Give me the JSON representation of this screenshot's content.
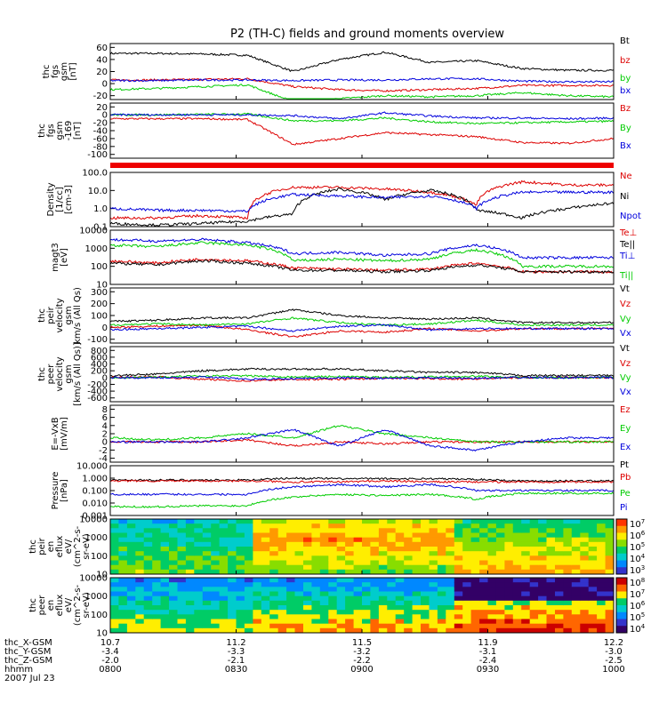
{
  "title": "P2 (TH-C) fields and ground moments overview",
  "colors": {
    "black": "#000000",
    "red": "#dd0000",
    "green": "#00cc00",
    "blue": "#0000dd"
  },
  "chart_data": [
    {
      "type": "line",
      "panel": "fgs",
      "ylabel": [
        "thc",
        "fgs",
        "gsm",
        "[nT]"
      ],
      "yticks": [
        "60",
        "40",
        "20",
        "0",
        "-20"
      ],
      "series": [
        {
          "name": "Bt",
          "color": "black",
          "values": [
            50,
            50,
            49,
            47,
            20,
            40,
            52,
            35,
            38,
            25,
            22,
            22
          ]
        },
        {
          "name": "bz",
          "color": "red",
          "values": [
            6,
            6,
            7,
            8,
            -5,
            -10,
            -12,
            -10,
            -8,
            -3,
            -3,
            -3
          ]
        },
        {
          "name": "by",
          "color": "green",
          "values": [
            -10,
            -8,
            -5,
            -2,
            -30,
            -25,
            -20,
            -22,
            -20,
            -15,
            -20,
            -22
          ]
        },
        {
          "name": "bx",
          "color": "blue",
          "values": [
            5,
            5,
            6,
            6,
            5,
            6,
            6,
            8,
            8,
            4,
            3,
            3
          ]
        }
      ]
    },
    {
      "type": "line",
      "panel": "fgs-169",
      "ylabel": [
        "thc",
        "fgs",
        "gsm",
        "-169",
        "[nT]"
      ],
      "yticks": [
        "20",
        "0",
        "-20",
        "-40",
        "-60",
        "-80",
        "-100"
      ],
      "series": [
        {
          "name": "Bz",
          "color": "red",
          "values": [
            -10,
            -10,
            -10,
            -12,
            -75,
            -60,
            -45,
            -50,
            -55,
            -70,
            -72,
            -60
          ]
        },
        {
          "name": "By",
          "color": "green",
          "values": [
            0,
            0,
            1,
            2,
            -15,
            -15,
            -8,
            -18,
            -22,
            -20,
            -18,
            -16
          ]
        },
        {
          "name": "Bx",
          "color": "blue",
          "values": [
            0,
            0,
            0,
            0,
            -2,
            -10,
            5,
            -3,
            -8,
            -8,
            -10,
            -8
          ]
        }
      ]
    },
    {
      "type": "line",
      "panel": "density",
      "yscale": "log",
      "ylabel": [
        "Density",
        "[1/cc]",
        "[cm-3]"
      ],
      "yticks": [
        "100.0",
        "10.0",
        "1.0",
        "0.1"
      ],
      "series": [
        {
          "name": "Ne",
          "color": "red",
          "values": [
            0.3,
            0.3,
            0.4,
            0.3,
            15,
            15,
            12,
            8,
            1.5,
            30,
            20,
            20
          ]
        },
        {
          "name": "Ni",
          "color": "black",
          "values": [
            0.15,
            0.12,
            0.15,
            0.2,
            0.5,
            12,
            3,
            10,
            0.8,
            0.3,
            1,
            2
          ]
        },
        {
          "name": "Npot",
          "color": "blue",
          "values": [
            1,
            0.8,
            0.8,
            0.7,
            6,
            5,
            4,
            5,
            1,
            8,
            8,
            8
          ]
        }
      ]
    },
    {
      "type": "line",
      "panel": "temperature",
      "yscale": "log",
      "ylabel": [
        "magt3",
        "[eV]"
      ],
      "yticks": [
        "10000",
        "1000",
        "100",
        "10"
      ],
      "legend_extra": [
        "Te⊥",
        "Te||",
        "Ti⊥",
        "Ti||"
      ],
      "series": [
        {
          "name": "Te⊥",
          "color": "red",
          "values": [
            200,
            150,
            250,
            200,
            80,
            70,
            60,
            70,
            150,
            50,
            50,
            50
          ]
        },
        {
          "name": "Te||",
          "color": "black",
          "values": [
            150,
            120,
            200,
            150,
            60,
            60,
            50,
            60,
            120,
            50,
            50,
            50
          ]
        },
        {
          "name": "Ti⊥",
          "color": "blue",
          "values": [
            3000,
            2500,
            3000,
            2000,
            500,
            600,
            400,
            500,
            1500,
            300,
            300,
            300
          ]
        },
        {
          "name": "Ti||",
          "color": "green",
          "values": [
            1500,
            1200,
            2000,
            1500,
            200,
            250,
            200,
            250,
            800,
            100,
            100,
            100
          ]
        }
      ]
    },
    {
      "type": "line",
      "panel": "peir-velocity",
      "ylabel": [
        "thc",
        "peir",
        "velocity",
        "gsm",
        "km/s (All Qs)"
      ],
      "yticks": [
        "300",
        "200",
        "100",
        "0",
        "-100"
      ],
      "series": [
        {
          "name": "Vt",
          "color": "black",
          "values": [
            50,
            60,
            80,
            80,
            150,
            100,
            80,
            70,
            80,
            40,
            40,
            40
          ]
        },
        {
          "name": "Vz",
          "color": "red",
          "values": [
            0,
            10,
            20,
            -20,
            -80,
            -30,
            -40,
            -10,
            -30,
            -10,
            -10,
            -10
          ]
        },
        {
          "name": "Vy",
          "color": "green",
          "values": [
            20,
            30,
            20,
            30,
            80,
            40,
            20,
            30,
            60,
            20,
            20,
            20
          ]
        },
        {
          "name": "Vx",
          "color": "blue",
          "values": [
            -20,
            -10,
            0,
            10,
            -30,
            10,
            20,
            -20,
            -10,
            -10,
            -10,
            -10
          ]
        }
      ]
    },
    {
      "type": "line",
      "panel": "peer-velocity",
      "ylabel": [
        "thc",
        "peer",
        "velocity",
        "gsm",
        "[km/s (All Qs)]"
      ],
      "yticks": [
        "800",
        "600",
        "400",
        "200",
        "0",
        "-200",
        "-400",
        "-600"
      ],
      "series": [
        {
          "name": "Vt",
          "color": "black",
          "values": [
            50,
            100,
            200,
            250,
            250,
            250,
            200,
            150,
            150,
            60,
            60,
            60
          ]
        },
        {
          "name": "Vz",
          "color": "red",
          "values": [
            0,
            20,
            -50,
            -100,
            -50,
            -50,
            -20,
            -30,
            -40,
            0,
            0,
            0
          ]
        },
        {
          "name": "Vy",
          "color": "green",
          "values": [
            0,
            10,
            50,
            50,
            20,
            30,
            10,
            20,
            40,
            0,
            0,
            0
          ]
        },
        {
          "name": "Vx",
          "color": "blue",
          "values": [
            0,
            -10,
            20,
            -50,
            -30,
            -10,
            -20,
            -10,
            -20,
            0,
            0,
            0
          ]
        }
      ]
    },
    {
      "type": "line",
      "panel": "efield",
      "ylabel": [
        "E=-VxB",
        "[mV/m]"
      ],
      "yticks": [
        "8",
        "6",
        "4",
        "2",
        "0",
        "-2",
        "-4"
      ],
      "series": [
        {
          "name": "Ez",
          "color": "red",
          "values": [
            0,
            0,
            0,
            0.5,
            -1,
            0,
            -0.5,
            0,
            0,
            0,
            0,
            0
          ]
        },
        {
          "name": "Ey",
          "color": "green",
          "values": [
            1,
            0.5,
            1,
            2,
            1,
            4,
            2,
            1,
            0,
            0,
            0,
            0
          ]
        },
        {
          "name": "Ex",
          "color": "blue",
          "values": [
            0,
            0,
            0,
            1,
            3,
            -1,
            3,
            -1,
            -2,
            0,
            1,
            1
          ]
        }
      ]
    },
    {
      "type": "line",
      "panel": "pressure",
      "yscale": "log",
      "ylabel": [
        "Pressure",
        "[nPa]"
      ],
      "yticks": [
        "10.000",
        "1.000",
        "0.100",
        "0.010",
        "0.001"
      ],
      "series": [
        {
          "name": "Pt",
          "color": "black",
          "values": [
            0.7,
            0.7,
            0.7,
            0.7,
            1,
            0.9,
            0.9,
            0.9,
            0.8,
            0.6,
            0.6,
            0.6
          ]
        },
        {
          "name": "Pb",
          "color": "red",
          "values": [
            0.6,
            0.6,
            0.6,
            0.6,
            0.5,
            0.5,
            0.6,
            0.5,
            0.5,
            0.5,
            0.5,
            0.5
          ]
        },
        {
          "name": "Pe",
          "color": "green",
          "values": [
            0.005,
            0.005,
            0.006,
            0.006,
            0.03,
            0.05,
            0.04,
            0.05,
            0.02,
            0.06,
            0.06,
            0.06
          ]
        },
        {
          "name": "Pi",
          "color": "blue",
          "values": [
            0.05,
            0.05,
            0.05,
            0.05,
            0.2,
            0.3,
            0.2,
            0.3,
            0.1,
            0.1,
            0.1,
            0.1
          ]
        }
      ]
    },
    {
      "type": "heatmap",
      "panel": "peir-en-eflux",
      "yscale": "log",
      "ylabel": [
        "thc",
        "peir",
        "en",
        "eflux",
        "eV/",
        "(cm^2-s-",
        "sr-eV)"
      ],
      "yticks": [
        "10000",
        "1000",
        "100",
        "10"
      ],
      "colorbar": {
        "min_exp": 3,
        "max_exp": 7,
        "ticks": [
          "10^7",
          "10^6",
          "10^5",
          "10^4",
          "10^3"
        ]
      }
    },
    {
      "type": "heatmap",
      "panel": "peer-en-eflux",
      "yscale": "log",
      "ylabel": [
        "thc",
        "peer",
        "en",
        "eflux",
        "eV/",
        "(cm^2-s-",
        "sr-eV)"
      ],
      "yticks": [
        "10000",
        "1000",
        "100",
        "10"
      ],
      "colorbar": {
        "min_exp": 4,
        "max_exp": 8,
        "ticks": [
          "10^8",
          "10^7",
          "10^6",
          "10^5",
          "10^4"
        ]
      }
    }
  ],
  "x_axis": {
    "ticks": [
      {
        "x": 0.0,
        "label": "10.7",
        "ylab": "-3.4",
        "zlab": "-2.0",
        "time": "0800"
      },
      {
        "x": 0.25,
        "label": "11.2",
        "ylab": "-3.3",
        "zlab": "-2.1",
        "time": "0830"
      },
      {
        "x": 0.5,
        "label": "11.5",
        "ylab": "-3.2",
        "zlab": "-2.2",
        "time": "0900"
      },
      {
        "x": 0.75,
        "label": "11.9",
        "ylab": "-3.1",
        "zlab": "-2.4",
        "time": "0930"
      },
      {
        "x": 1.0,
        "label": "12.2",
        "ylab": "-3.0",
        "zlab": "-2.5",
        "time": "1000"
      }
    ],
    "row_labels": [
      "thc_X-GSM",
      "thc_Y-GSM",
      "thc_Z-GSM",
      "hhmm",
      "2007 Jul 23"
    ]
  }
}
